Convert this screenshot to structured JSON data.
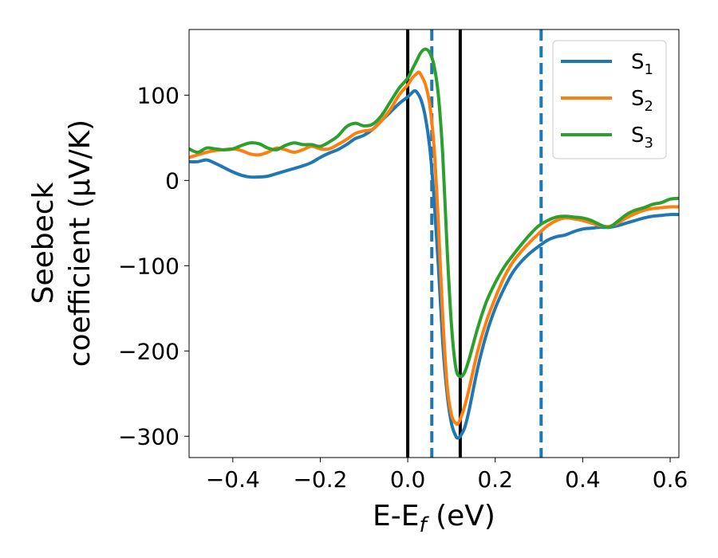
{
  "chart_data": {
    "type": "line",
    "xlabel": "E-E",
    "xlabel_sub": "f",
    "xlabel_unit": " (eV)",
    "ylabel_line1": "Seebeck",
    "ylabel_line2": "coefficient  (μV/K)",
    "xlim": [
      -0.5,
      0.62
    ],
    "ylim": [
      -325,
      177
    ],
    "xticks": [
      -0.4,
      -0.2,
      0.0,
      0.2,
      0.4,
      0.6
    ],
    "xtick_labels": [
      "−0.4",
      "−0.2",
      "0.0",
      "0.2",
      "0.4",
      "0.6"
    ],
    "yticks": [
      -300,
      -200,
      -100,
      0,
      100
    ],
    "ytick_labels": [
      "−300",
      "−200",
      "−100",
      "0",
      "100"
    ],
    "grid": false,
    "legend_position": "top-right",
    "vlines": [
      {
        "x": 0.0,
        "style": "solid",
        "color": "#000000"
      },
      {
        "x": 0.12,
        "style": "solid",
        "color": "#000000"
      },
      {
        "x": 0.055,
        "style": "dashed",
        "color": "#1f77b4"
      },
      {
        "x": 0.305,
        "style": "dashed",
        "color": "#1f77b4"
      }
    ],
    "series": [
      {
        "name": "S",
        "name_sub": "1",
        "color": "#1f77b4",
        "points": [
          [
            -0.5,
            22
          ],
          [
            -0.48,
            22
          ],
          [
            -0.46,
            24
          ],
          [
            -0.44,
            20
          ],
          [
            -0.42,
            15
          ],
          [
            -0.4,
            10
          ],
          [
            -0.38,
            6
          ],
          [
            -0.36,
            4
          ],
          [
            -0.34,
            4
          ],
          [
            -0.32,
            5
          ],
          [
            -0.3,
            8
          ],
          [
            -0.28,
            11
          ],
          [
            -0.26,
            14
          ],
          [
            -0.24,
            17
          ],
          [
            -0.22,
            21
          ],
          [
            -0.2,
            27
          ],
          [
            -0.18,
            32
          ],
          [
            -0.16,
            36
          ],
          [
            -0.14,
            42
          ],
          [
            -0.12,
            49
          ],
          [
            -0.1,
            53
          ],
          [
            -0.08,
            60
          ],
          [
            -0.06,
            70
          ],
          [
            -0.04,
            80
          ],
          [
            -0.02,
            90
          ],
          [
            0.0,
            98
          ],
          [
            0.01,
            103
          ],
          [
            0.015,
            105
          ],
          [
            0.02,
            104
          ],
          [
            0.03,
            95
          ],
          [
            0.04,
            75
          ],
          [
            0.05,
            40
          ],
          [
            0.06,
            -20
          ],
          [
            0.07,
            -100
          ],
          [
            0.08,
            -190
          ],
          [
            0.09,
            -250
          ],
          [
            0.1,
            -285
          ],
          [
            0.11,
            -300
          ],
          [
            0.115,
            -302
          ],
          [
            0.12,
            -300
          ],
          [
            0.13,
            -290
          ],
          [
            0.14,
            -270
          ],
          [
            0.16,
            -220
          ],
          [
            0.18,
            -180
          ],
          [
            0.2,
            -150
          ],
          [
            0.22,
            -127
          ],
          [
            0.24,
            -108
          ],
          [
            0.26,
            -95
          ],
          [
            0.28,
            -85
          ],
          [
            0.3,
            -77
          ],
          [
            0.32,
            -70
          ],
          [
            0.34,
            -66
          ],
          [
            0.36,
            -64
          ],
          [
            0.38,
            -60
          ],
          [
            0.4,
            -57
          ],
          [
            0.42,
            -56
          ],
          [
            0.44,
            -55
          ],
          [
            0.46,
            -55
          ],
          [
            0.48,
            -53
          ],
          [
            0.5,
            -50
          ],
          [
            0.52,
            -47
          ],
          [
            0.54,
            -44
          ],
          [
            0.56,
            -42
          ],
          [
            0.58,
            -41
          ],
          [
            0.6,
            -40
          ],
          [
            0.62,
            -40
          ]
        ]
      },
      {
        "name": "S",
        "name_sub": "2",
        "color": "#ff7f0e",
        "points": [
          [
            -0.5,
            27
          ],
          [
            -0.48,
            30
          ],
          [
            -0.46,
            33
          ],
          [
            -0.44,
            35
          ],
          [
            -0.42,
            36
          ],
          [
            -0.4,
            37
          ],
          [
            -0.38,
            35
          ],
          [
            -0.36,
            31
          ],
          [
            -0.34,
            30
          ],
          [
            -0.32,
            33
          ],
          [
            -0.3,
            38
          ],
          [
            -0.28,
            36
          ],
          [
            -0.26,
            33
          ],
          [
            -0.24,
            36
          ],
          [
            -0.22,
            40
          ],
          [
            -0.2,
            37
          ],
          [
            -0.18,
            37
          ],
          [
            -0.16,
            42
          ],
          [
            -0.14,
            48
          ],
          [
            -0.12,
            55
          ],
          [
            -0.1,
            58
          ],
          [
            -0.08,
            60
          ],
          [
            -0.06,
            70
          ],
          [
            -0.04,
            83
          ],
          [
            -0.02,
            100
          ],
          [
            0.0,
            112
          ],
          [
            0.01,
            120
          ],
          [
            0.02,
            125
          ],
          [
            0.025,
            127
          ],
          [
            0.03,
            124
          ],
          [
            0.04,
            113
          ],
          [
            0.05,
            90
          ],
          [
            0.06,
            40
          ],
          [
            0.07,
            -50
          ],
          [
            0.08,
            -160
          ],
          [
            0.09,
            -240
          ],
          [
            0.1,
            -275
          ],
          [
            0.11,
            -285
          ],
          [
            0.115,
            -285
          ],
          [
            0.12,
            -280
          ],
          [
            0.13,
            -265
          ],
          [
            0.14,
            -245
          ],
          [
            0.16,
            -200
          ],
          [
            0.18,
            -165
          ],
          [
            0.2,
            -138
          ],
          [
            0.22,
            -114
          ],
          [
            0.24,
            -96
          ],
          [
            0.26,
            -83
          ],
          [
            0.28,
            -72
          ],
          [
            0.3,
            -62
          ],
          [
            0.32,
            -53
          ],
          [
            0.34,
            -47
          ],
          [
            0.36,
            -44
          ],
          [
            0.38,
            -45
          ],
          [
            0.4,
            -47
          ],
          [
            0.42,
            -50
          ],
          [
            0.44,
            -53
          ],
          [
            0.46,
            -54
          ],
          [
            0.48,
            -50
          ],
          [
            0.5,
            -44
          ],
          [
            0.52,
            -39
          ],
          [
            0.54,
            -35
          ],
          [
            0.56,
            -33
          ],
          [
            0.58,
            -32
          ],
          [
            0.6,
            -31
          ],
          [
            0.62,
            -31
          ]
        ]
      },
      {
        "name": "S",
        "name_sub": "3",
        "color": "#2ca02c",
        "points": [
          [
            -0.5,
            37
          ],
          [
            -0.48,
            33
          ],
          [
            -0.46,
            38
          ],
          [
            -0.44,
            37
          ],
          [
            -0.42,
            36
          ],
          [
            -0.4,
            37
          ],
          [
            -0.38,
            41
          ],
          [
            -0.36,
            44
          ],
          [
            -0.34,
            43
          ],
          [
            -0.32,
            38
          ],
          [
            -0.3,
            36
          ],
          [
            -0.28,
            41
          ],
          [
            -0.26,
            44
          ],
          [
            -0.24,
            42
          ],
          [
            -0.22,
            42
          ],
          [
            -0.2,
            40
          ],
          [
            -0.18,
            45
          ],
          [
            -0.16,
            52
          ],
          [
            -0.14,
            63
          ],
          [
            -0.12,
            67
          ],
          [
            -0.1,
            64
          ],
          [
            -0.08,
            66
          ],
          [
            -0.06,
            76
          ],
          [
            -0.04,
            92
          ],
          [
            -0.02,
            108
          ],
          [
            0.0,
            120
          ],
          [
            0.01,
            130
          ],
          [
            0.02,
            140
          ],
          [
            0.03,
            150
          ],
          [
            0.04,
            154
          ],
          [
            0.05,
            150
          ],
          [
            0.06,
            135
          ],
          [
            0.07,
            100
          ],
          [
            0.08,
            30
          ],
          [
            0.09,
            -80
          ],
          [
            0.1,
            -170
          ],
          [
            0.11,
            -220
          ],
          [
            0.12,
            -230
          ],
          [
            0.13,
            -225
          ],
          [
            0.14,
            -210
          ],
          [
            0.16,
            -173
          ],
          [
            0.18,
            -142
          ],
          [
            0.2,
            -120
          ],
          [
            0.22,
            -102
          ],
          [
            0.24,
            -88
          ],
          [
            0.26,
            -75
          ],
          [
            0.28,
            -63
          ],
          [
            0.3,
            -53
          ],
          [
            0.32,
            -47
          ],
          [
            0.34,
            -43
          ],
          [
            0.36,
            -42
          ],
          [
            0.38,
            -43
          ],
          [
            0.4,
            -44
          ],
          [
            0.42,
            -47
          ],
          [
            0.44,
            -52
          ],
          [
            0.46,
            -55
          ],
          [
            0.48,
            -48
          ],
          [
            0.5,
            -40
          ],
          [
            0.52,
            -35
          ],
          [
            0.54,
            -32
          ],
          [
            0.56,
            -28
          ],
          [
            0.58,
            -26
          ],
          [
            0.6,
            -22
          ],
          [
            0.62,
            -21
          ]
        ]
      }
    ]
  }
}
